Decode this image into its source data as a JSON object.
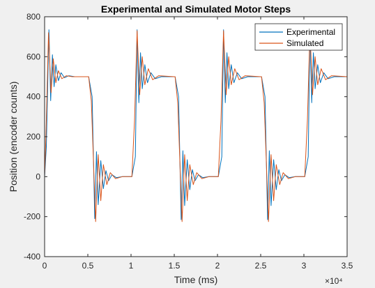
{
  "chart_data": {
    "type": "line",
    "title": "Experimental and Simulated Motor Steps",
    "xlabel": "Time (ms)",
    "ylabel": "Position (encoder counts)",
    "xlim": [
      0,
      35000
    ],
    "ylim": [
      -400,
      800
    ],
    "x_tick_labels": [
      "0",
      "0.5",
      "1",
      "1.5",
      "2",
      "2.5",
      "3",
      "3.5"
    ],
    "x_tick_values": [
      0,
      5000,
      10000,
      15000,
      20000,
      25000,
      30000,
      35000
    ],
    "x_exponent_label": "×10⁴",
    "y_tick_values": [
      -400,
      -200,
      0,
      200,
      400,
      600,
      800
    ],
    "y_tick_labels": [
      "-400",
      "-200",
      "0",
      "200",
      "400",
      "600",
      "800"
    ],
    "grid": false,
    "legend_position": "top-right",
    "series": [
      {
        "name": "Experimental",
        "color": "#0072BD",
        "x": [
          0,
          200,
          500,
          700,
          900,
          1100,
          1300,
          1600,
          1900,
          2300,
          2800,
          3500,
          4000,
          5000,
          5100,
          5500,
          5800,
          6000,
          6200,
          6500,
          6800,
          7100,
          7400,
          7800,
          8300,
          9000,
          10000,
          10100,
          10500,
          10700,
          10900,
          11100,
          11300,
          11600,
          11900,
          12300,
          12800,
          13500,
          15000,
          15100,
          15500,
          15800,
          16000,
          16200,
          16500,
          16800,
          17100,
          17400,
          17800,
          18300,
          19000,
          20000,
          20100,
          20500,
          20700,
          20900,
          21100,
          21300,
          21600,
          21900,
          22300,
          22800,
          23500,
          25000,
          25100,
          25500,
          25800,
          26000,
          26200,
          26500,
          26800,
          27100,
          27400,
          27800,
          28300,
          29000,
          30000,
          30100,
          30500,
          30700,
          30900,
          31100,
          31300,
          31600,
          31900,
          32300,
          32800,
          33500,
          35000
        ],
        "y": [
          0,
          150,
          735,
          380,
          610,
          450,
          560,
          480,
          520,
          495,
          505,
          500,
          500,
          500,
          500,
          400,
          -210,
          125,
          -140,
          80,
          -60,
          30,
          -20,
          10,
          -5,
          0,
          0,
          0,
          100,
          735,
          370,
          620,
          440,
          560,
          470,
          520,
          490,
          500,
          500,
          500,
          400,
          -215,
          130,
          -145,
          85,
          -65,
          35,
          -20,
          10,
          -5,
          0,
          0,
          0,
          100,
          735,
          370,
          620,
          440,
          560,
          470,
          520,
          490,
          500,
          500,
          500,
          400,
          -215,
          130,
          -145,
          85,
          -65,
          35,
          -20,
          10,
          -5,
          0,
          0,
          0,
          100,
          735,
          370,
          620,
          440,
          560,
          470,
          520,
          490,
          500,
          500
        ]
      },
      {
        "name": "Simulated",
        "color": "#D95319",
        "x": [
          0,
          150,
          450,
          750,
          1000,
          1300,
          1600,
          2000,
          2500,
          3200,
          5000,
          5100,
          5400,
          5900,
          6200,
          6500,
          6800,
          7200,
          7600,
          8200,
          9000,
          10000,
          10100,
          10400,
          10700,
          11000,
          11300,
          11600,
          12000,
          12500,
          13200,
          15000,
          15100,
          15400,
          15900,
          16200,
          16500,
          16800,
          17200,
          17600,
          18200,
          19000,
          20000,
          20100,
          20400,
          20700,
          21000,
          21300,
          21600,
          22000,
          22500,
          23200,
          25000,
          25100,
          25400,
          25900,
          26200,
          26500,
          26800,
          27200,
          27600,
          28200,
          29000,
          30000,
          30100,
          30400,
          30700,
          31000,
          31300,
          31600,
          32000,
          32500,
          33200,
          35000
        ],
        "y": [
          0,
          200,
          720,
          420,
          590,
          470,
          530,
          490,
          505,
          500,
          500,
          500,
          380,
          -225,
          110,
          -120,
          60,
          -40,
          20,
          -10,
          0,
          0,
          0,
          280,
          730,
          410,
          600,
          460,
          540,
          485,
          505,
          500,
          500,
          370,
          -225,
          110,
          -120,
          60,
          -40,
          20,
          -10,
          0,
          0,
          0,
          280,
          730,
          410,
          600,
          460,
          540,
          485,
          505,
          500,
          500,
          370,
          -225,
          110,
          -120,
          60,
          -40,
          20,
          -10,
          0,
          0,
          0,
          280,
          730,
          410,
          600,
          460,
          540,
          485,
          505,
          500
        ]
      }
    ]
  }
}
